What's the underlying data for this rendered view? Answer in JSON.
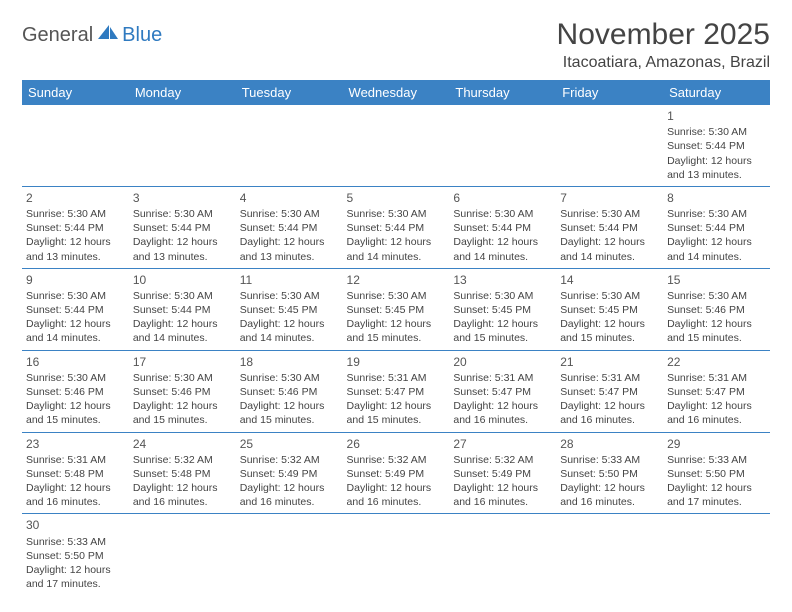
{
  "logo": {
    "general": "General",
    "blue": "Blue"
  },
  "header": {
    "title": "November 2025",
    "location": "Itacoatiara, Amazonas, Brazil"
  },
  "colors": {
    "header_bg": "#3b82c4",
    "header_text": "#ffffff",
    "cell_border": "#3b82c4",
    "logo_blue": "#2f7ac0"
  },
  "day_headers": [
    "Sunday",
    "Monday",
    "Tuesday",
    "Wednesday",
    "Thursday",
    "Friday",
    "Saturday"
  ],
  "weeks": [
    [
      null,
      null,
      null,
      null,
      null,
      null,
      {
        "n": "1",
        "sr": "Sunrise: 5:30 AM",
        "ss": "Sunset: 5:44 PM",
        "dl": "Daylight: 12 hours and 13 minutes."
      }
    ],
    [
      {
        "n": "2",
        "sr": "Sunrise: 5:30 AM",
        "ss": "Sunset: 5:44 PM",
        "dl": "Daylight: 12 hours and 13 minutes."
      },
      {
        "n": "3",
        "sr": "Sunrise: 5:30 AM",
        "ss": "Sunset: 5:44 PM",
        "dl": "Daylight: 12 hours and 13 minutes."
      },
      {
        "n": "4",
        "sr": "Sunrise: 5:30 AM",
        "ss": "Sunset: 5:44 PM",
        "dl": "Daylight: 12 hours and 13 minutes."
      },
      {
        "n": "5",
        "sr": "Sunrise: 5:30 AM",
        "ss": "Sunset: 5:44 PM",
        "dl": "Daylight: 12 hours and 14 minutes."
      },
      {
        "n": "6",
        "sr": "Sunrise: 5:30 AM",
        "ss": "Sunset: 5:44 PM",
        "dl": "Daylight: 12 hours and 14 minutes."
      },
      {
        "n": "7",
        "sr": "Sunrise: 5:30 AM",
        "ss": "Sunset: 5:44 PM",
        "dl": "Daylight: 12 hours and 14 minutes."
      },
      {
        "n": "8",
        "sr": "Sunrise: 5:30 AM",
        "ss": "Sunset: 5:44 PM",
        "dl": "Daylight: 12 hours and 14 minutes."
      }
    ],
    [
      {
        "n": "9",
        "sr": "Sunrise: 5:30 AM",
        "ss": "Sunset: 5:44 PM",
        "dl": "Daylight: 12 hours and 14 minutes."
      },
      {
        "n": "10",
        "sr": "Sunrise: 5:30 AM",
        "ss": "Sunset: 5:44 PM",
        "dl": "Daylight: 12 hours and 14 minutes."
      },
      {
        "n": "11",
        "sr": "Sunrise: 5:30 AM",
        "ss": "Sunset: 5:45 PM",
        "dl": "Daylight: 12 hours and 14 minutes."
      },
      {
        "n": "12",
        "sr": "Sunrise: 5:30 AM",
        "ss": "Sunset: 5:45 PM",
        "dl": "Daylight: 12 hours and 15 minutes."
      },
      {
        "n": "13",
        "sr": "Sunrise: 5:30 AM",
        "ss": "Sunset: 5:45 PM",
        "dl": "Daylight: 12 hours and 15 minutes."
      },
      {
        "n": "14",
        "sr": "Sunrise: 5:30 AM",
        "ss": "Sunset: 5:45 PM",
        "dl": "Daylight: 12 hours and 15 minutes."
      },
      {
        "n": "15",
        "sr": "Sunrise: 5:30 AM",
        "ss": "Sunset: 5:46 PM",
        "dl": "Daylight: 12 hours and 15 minutes."
      }
    ],
    [
      {
        "n": "16",
        "sr": "Sunrise: 5:30 AM",
        "ss": "Sunset: 5:46 PM",
        "dl": "Daylight: 12 hours and 15 minutes."
      },
      {
        "n": "17",
        "sr": "Sunrise: 5:30 AM",
        "ss": "Sunset: 5:46 PM",
        "dl": "Daylight: 12 hours and 15 minutes."
      },
      {
        "n": "18",
        "sr": "Sunrise: 5:30 AM",
        "ss": "Sunset: 5:46 PM",
        "dl": "Daylight: 12 hours and 15 minutes."
      },
      {
        "n": "19",
        "sr": "Sunrise: 5:31 AM",
        "ss": "Sunset: 5:47 PM",
        "dl": "Daylight: 12 hours and 15 minutes."
      },
      {
        "n": "20",
        "sr": "Sunrise: 5:31 AM",
        "ss": "Sunset: 5:47 PM",
        "dl": "Daylight: 12 hours and 16 minutes."
      },
      {
        "n": "21",
        "sr": "Sunrise: 5:31 AM",
        "ss": "Sunset: 5:47 PM",
        "dl": "Daylight: 12 hours and 16 minutes."
      },
      {
        "n": "22",
        "sr": "Sunrise: 5:31 AM",
        "ss": "Sunset: 5:47 PM",
        "dl": "Daylight: 12 hours and 16 minutes."
      }
    ],
    [
      {
        "n": "23",
        "sr": "Sunrise: 5:31 AM",
        "ss": "Sunset: 5:48 PM",
        "dl": "Daylight: 12 hours and 16 minutes."
      },
      {
        "n": "24",
        "sr": "Sunrise: 5:32 AM",
        "ss": "Sunset: 5:48 PM",
        "dl": "Daylight: 12 hours and 16 minutes."
      },
      {
        "n": "25",
        "sr": "Sunrise: 5:32 AM",
        "ss": "Sunset: 5:49 PM",
        "dl": "Daylight: 12 hours and 16 minutes."
      },
      {
        "n": "26",
        "sr": "Sunrise: 5:32 AM",
        "ss": "Sunset: 5:49 PM",
        "dl": "Daylight: 12 hours and 16 minutes."
      },
      {
        "n": "27",
        "sr": "Sunrise: 5:32 AM",
        "ss": "Sunset: 5:49 PM",
        "dl": "Daylight: 12 hours and 16 minutes."
      },
      {
        "n": "28",
        "sr": "Sunrise: 5:33 AM",
        "ss": "Sunset: 5:50 PM",
        "dl": "Daylight: 12 hours and 16 minutes."
      },
      {
        "n": "29",
        "sr": "Sunrise: 5:33 AM",
        "ss": "Sunset: 5:50 PM",
        "dl": "Daylight: 12 hours and 17 minutes."
      }
    ],
    [
      {
        "n": "30",
        "sr": "Sunrise: 5:33 AM",
        "ss": "Sunset: 5:50 PM",
        "dl": "Daylight: 12 hours and 17 minutes."
      },
      null,
      null,
      null,
      null,
      null,
      null
    ]
  ]
}
